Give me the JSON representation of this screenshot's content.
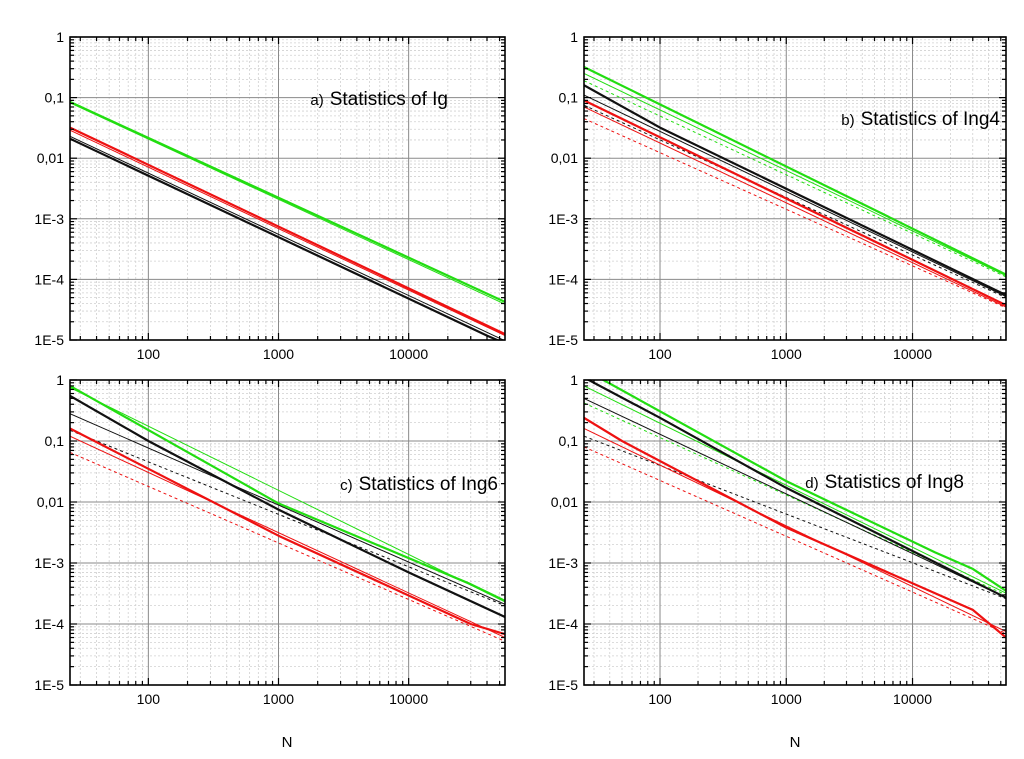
{
  "figure": {
    "shared_xlabel": "N",
    "series_colors": {
      "green": "#22dd11",
      "red": "#ee1111",
      "black": "#111111"
    },
    "grid_colors": {
      "major": "#8a8a8a",
      "minor": "#d0d0d0"
    }
  },
  "chart_data": [
    {
      "type": "line",
      "panel": "a",
      "title_prefix": "a)",
      "title": "Statistics of Ig",
      "xlabel": "",
      "ylabel": "",
      "xscale": "log",
      "yscale": "log",
      "xlim": [
        25,
        55000
      ],
      "ylim": [
        1e-05,
        1
      ],
      "xticks": [
        100,
        1000,
        10000
      ],
      "xtick_labels": [
        "100",
        "1000",
        "10000"
      ],
      "yticks": [
        1e-05,
        0.0001,
        0.001,
        0.01,
        0.1,
        1
      ],
      "ytick_labels": [
        "1E-5",
        "1E-4",
        "1E-3",
        "0,01",
        "0,1",
        "1"
      ],
      "grid": true,
      "series": [
        {
          "name": "green",
          "color": "#22dd11",
          "width": 2.2,
          "dash": "",
          "x": [
            25,
            55000
          ],
          "y": [
            0.085,
            4.25e-05
          ]
        },
        {
          "name": "green-thin",
          "color": "#22dd11",
          "width": 1,
          "dash": "",
          "x": [
            25,
            55000
          ],
          "y": [
            0.082,
            3.9e-05
          ]
        },
        {
          "name": "red",
          "color": "#ee1111",
          "width": 2.2,
          "dash": "",
          "x": [
            25,
            55000
          ],
          "y": [
            0.032,
            1.25e-05
          ]
        },
        {
          "name": "red-thin",
          "color": "#ee1111",
          "width": 1,
          "dash": "",
          "x": [
            25,
            55000
          ],
          "y": [
            0.029,
            1.18e-05
          ]
        },
        {
          "name": "black",
          "color": "#111111",
          "width": 2.2,
          "dash": "",
          "x": [
            25,
            40000,
            55000
          ],
          "y": [
            0.021,
            1.18e-05,
            8.8e-06
          ]
        },
        {
          "name": "black-thin",
          "color": "#111111",
          "width": 1,
          "dash": "",
          "x": [
            25,
            55000
          ],
          "y": [
            0.023,
            9.7e-06
          ]
        }
      ]
    },
    {
      "type": "line",
      "panel": "b",
      "title_prefix": "b)",
      "title": "Statistics of Ing4",
      "xlabel": "",
      "ylabel": "",
      "xscale": "log",
      "yscale": "log",
      "xlim": [
        25,
        55000
      ],
      "ylim": [
        1e-05,
        1
      ],
      "xticks": [
        100,
        1000,
        10000
      ],
      "xtick_labels": [
        "100",
        "1000",
        "10000"
      ],
      "yticks": [
        1e-05,
        0.0001,
        0.001,
        0.01,
        0.1,
        1
      ],
      "ytick_labels": [
        "1E-5",
        "1E-4",
        "1E-3",
        "0,01",
        "0,1",
        "1"
      ],
      "grid": true,
      "series": [
        {
          "name": "green",
          "color": "#22dd11",
          "width": 2.2,
          "dash": "",
          "x": [
            25,
            55000
          ],
          "y": [
            0.32,
            0.00012
          ]
        },
        {
          "name": "green-thin",
          "color": "#22dd11",
          "width": 1,
          "dash": "",
          "x": [
            25,
            55000
          ],
          "y": [
            0.25,
            0.000115
          ]
        },
        {
          "name": "green-dashed",
          "color": "#22dd11",
          "width": 1,
          "dash": "3,3",
          "x": [
            25,
            55000
          ],
          "y": [
            0.19,
            0.00011
          ]
        },
        {
          "name": "black",
          "color": "#111111",
          "width": 2.2,
          "dash": "",
          "x": [
            25,
            100,
            55000
          ],
          "y": [
            0.16,
            0.032,
            5.5e-05
          ]
        },
        {
          "name": "black-thin",
          "color": "#111111",
          "width": 1,
          "dash": "",
          "x": [
            25,
            55000
          ],
          "y": [
            0.11,
            5.2e-05
          ]
        },
        {
          "name": "black-dashed",
          "color": "#111111",
          "width": 1,
          "dash": "3,3",
          "x": [
            25,
            55000
          ],
          "y": [
            0.075,
            5e-05
          ]
        },
        {
          "name": "red",
          "color": "#ee1111",
          "width": 2.2,
          "dash": "",
          "x": [
            25,
            55000
          ],
          "y": [
            0.09,
            3.75e-05
          ]
        },
        {
          "name": "red-thin",
          "color": "#ee1111",
          "width": 1,
          "dash": "",
          "x": [
            25,
            55000
          ],
          "y": [
            0.07,
            3.5e-05
          ]
        },
        {
          "name": "red-dashed",
          "color": "#ee1111",
          "width": 1,
          "dash": "3,3",
          "x": [
            25,
            55000
          ],
          "y": [
            0.045,
            3.4e-05
          ]
        }
      ]
    },
    {
      "type": "line",
      "panel": "c",
      "title_prefix": "c)",
      "title": "Statistics of Ing6",
      "xlabel": "N",
      "ylabel": "",
      "xscale": "log",
      "yscale": "log",
      "xlim": [
        25,
        55000
      ],
      "ylim": [
        1e-05,
        1
      ],
      "xticks": [
        100,
        1000,
        10000
      ],
      "xtick_labels": [
        "100",
        "1000",
        "10000"
      ],
      "yticks": [
        1e-05,
        0.0001,
        0.001,
        0.01,
        0.1,
        1
      ],
      "ytick_labels": [
        "1E-5",
        "1E-4",
        "1E-3",
        "0,01",
        "0,1",
        "1"
      ],
      "grid": true,
      "series": [
        {
          "name": "green",
          "color": "#22dd11",
          "width": 2.2,
          "dash": "",
          "x": [
            25,
            1000,
            30000,
            55000
          ],
          "y": [
            0.8,
            0.0095,
            0.00045,
            0.00024
          ]
        },
        {
          "name": "green-thin",
          "color": "#22dd11",
          "width": 1,
          "dash": "",
          "x": [
            25,
            55000
          ],
          "y": [
            0.75,
            0.00023
          ]
        },
        {
          "name": "black",
          "color": "#111111",
          "width": 2.2,
          "dash": "",
          "x": [
            25,
            100,
            1000,
            10000,
            55000
          ],
          "y": [
            0.55,
            0.1,
            0.0075,
            0.0007,
            0.00013
          ]
        },
        {
          "name": "black-thin",
          "color": "#111111",
          "width": 1,
          "dash": "",
          "x": [
            25,
            55000
          ],
          "y": [
            0.28,
            0.00021
          ]
        },
        {
          "name": "black-dashed",
          "color": "#111111",
          "width": 1,
          "dash": "3,3",
          "x": [
            25,
            55000
          ],
          "y": [
            0.15,
            0.0002
          ]
        },
        {
          "name": "red",
          "color": "#ee1111",
          "width": 2.2,
          "dash": "",
          "x": [
            25,
            1000,
            30000,
            55000
          ],
          "y": [
            0.16,
            0.0028,
            0.0001,
            6.8e-05
          ]
        },
        {
          "name": "red-thin",
          "color": "#ee1111",
          "width": 1,
          "dash": "",
          "x": [
            25,
            55000
          ],
          "y": [
            0.12,
            6e-05
          ]
        },
        {
          "name": "red-dashed",
          "color": "#ee1111",
          "width": 1,
          "dash": "3,3",
          "x": [
            25,
            55000
          ],
          "y": [
            0.065,
            5.2e-05
          ]
        }
      ]
    },
    {
      "type": "line",
      "panel": "d",
      "title_prefix": "d)",
      "title": "Statistics of Ing8",
      "xlabel": "N",
      "ylabel": "",
      "xscale": "log",
      "yscale": "log",
      "xlim": [
        25,
        55000
      ],
      "ylim": [
        1e-05,
        1
      ],
      "xticks": [
        100,
        1000,
        10000
      ],
      "xtick_labels": [
        "100",
        "1000",
        "10000"
      ],
      "yticks": [
        1e-05,
        0.0001,
        0.001,
        0.01,
        0.1,
        1
      ],
      "ytick_labels": [
        "1E-5",
        "1E-4",
        "1E-3",
        "0,01",
        "0,1",
        "1"
      ],
      "grid": true,
      "series": [
        {
          "name": "green",
          "color": "#22dd11",
          "width": 2.2,
          "dash": "",
          "x": [
            25,
            1000,
            15000,
            30000,
            55000
          ],
          "y": [
            1.5,
            0.022,
            0.0015,
            0.0008,
            0.00035
          ]
        },
        {
          "name": "green-thin",
          "color": "#22dd11",
          "width": 1,
          "dash": "",
          "x": [
            25,
            55000
          ],
          "y": [
            0.8,
            0.00032
          ]
        },
        {
          "name": "green-dashed",
          "color": "#22dd11",
          "width": 1,
          "dash": "3,3",
          "x": [
            25,
            55000
          ],
          "y": [
            0.42,
            0.0003
          ]
        },
        {
          "name": "black",
          "color": "#111111",
          "width": 2.2,
          "dash": "",
          "x": [
            25,
            100,
            1000,
            55000
          ],
          "y": [
            1.1,
            0.24,
            0.017,
            0.00027
          ]
        },
        {
          "name": "black-thin",
          "color": "#111111",
          "width": 1,
          "dash": "",
          "x": [
            25,
            55000
          ],
          "y": [
            0.5,
            0.00027
          ]
        },
        {
          "name": "black-dashed",
          "color": "#111111",
          "width": 1,
          "dash": "3,3",
          "x": [
            25,
            55000
          ],
          "y": [
            0.12,
            0.00026
          ]
        },
        {
          "name": "red",
          "color": "#ee1111",
          "width": 2.2,
          "dash": "",
          "x": [
            25,
            50,
            1000,
            30000,
            55000
          ],
          "y": [
            0.24,
            0.1,
            0.0038,
            0.00017,
            6e-05
          ]
        },
        {
          "name": "red-thin",
          "color": "#ee1111",
          "width": 1,
          "dash": "",
          "x": [
            25,
            55000
          ],
          "y": [
            0.16,
            7.5e-05
          ]
        },
        {
          "name": "red-dashed",
          "color": "#ee1111",
          "width": 1,
          "dash": "3,3",
          "x": [
            25,
            55000
          ],
          "y": [
            0.08,
            7e-05
          ]
        }
      ]
    }
  ]
}
